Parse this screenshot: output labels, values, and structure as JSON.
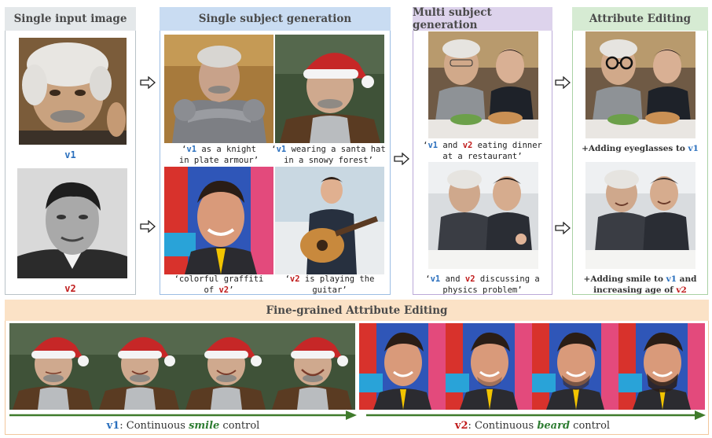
{
  "panels": {
    "single_input": {
      "title": "Single input image",
      "label_v1": "v1",
      "label_v2": "v2"
    },
    "single_subject": {
      "title": "Single subject generation",
      "captions": [
        {
          "q1": "‘",
          "tag": "v1",
          "rest": " as a knight",
          "line2": "in plate armour’"
        },
        {
          "q1": "‘",
          "tag": "v1",
          "rest": " wearing a santa hat",
          "line2": "in a snowy forest’"
        },
        {
          "line1": "‘colorful graffiti",
          "pre": "of ",
          "tag": "v2",
          "end": "’"
        },
        {
          "q1": "‘",
          "tag": "v2",
          "rest": " is playing the",
          "line2": "guitar’"
        }
      ]
    },
    "multi_subject": {
      "title": "Multi subject generation",
      "captions": [
        {
          "q": "‘",
          "a": "v1",
          "mid": " and ",
          "b": "v2",
          "rest": " eating dinner",
          "line2": "at a restaurant’"
        },
        {
          "q": "‘",
          "a": "v1",
          "mid": " and ",
          "b": "v2",
          "rest": " discussing a",
          "line2": "physics problem’"
        }
      ]
    },
    "attribute_editing": {
      "title": "Attribute Editing",
      "caption1": {
        "pre": "+Adding eyeglasses to ",
        "tag": "v1"
      },
      "caption2": {
        "pre": "+Adding smile to ",
        "tag1": "v1",
        "mid": " and",
        "line2": "increasing age of ",
        "tag2": "v2"
      }
    },
    "fine_grained": {
      "title": "Fine-grained Attribute Editing",
      "left": {
        "tag": "v1",
        "pre": ": Continuous ",
        "em": "smile",
        "post": " control"
      },
      "right": {
        "tag": "v2",
        "pre": ": Continuous ",
        "em": "beard",
        "post": " control"
      }
    }
  },
  "colors": {
    "gray_header": "#e4e8ea",
    "gray_border": "#b9c3c8",
    "blue_header": "#c9dcf2",
    "blue_border": "#9cbde3",
    "purple_header": "#ddd3ec",
    "purple_border": "#bba9d8",
    "green_header": "#d6ebd3",
    "green_border": "#a9d1a4",
    "orange_header": "#fbe2c6",
    "orange_border": "#f2c79c",
    "arrow_green": "#3f7b2b",
    "v1_blue": "#2a6fbd",
    "v2_red": "#c01c1c"
  }
}
